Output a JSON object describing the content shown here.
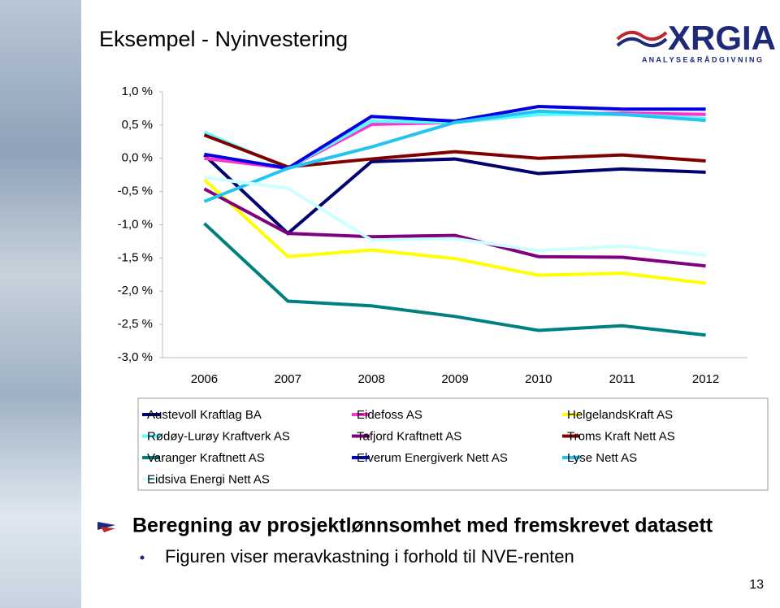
{
  "slide": {
    "title": "Eksempel - Nyinvestering",
    "logo_text": "XRGIA",
    "logo_subtitle": "A N A L Y S E  &  R Å D G I V N I N G",
    "heading": "Beregning av prosjektlønnsomhet med fremskrevet datasett",
    "bullet": "Figuren viser meravkastning i forhold til NVE-renten",
    "page_number": "13"
  },
  "chart_data": {
    "type": "line",
    "categories": [
      "2006",
      "2007",
      "2008",
      "2009",
      "2010",
      "2011",
      "2012"
    ],
    "ylim": [
      -3.0,
      1.0
    ],
    "yticks": [
      {
        "value": 1.0,
        "label": "1,0 %"
      },
      {
        "value": 0.5,
        "label": "0,5 %"
      },
      {
        "value": 0.0,
        "label": "0,0 %"
      },
      {
        "value": -0.5,
        "label": "-0,5 %"
      },
      {
        "value": -1.0,
        "label": "-1,0 %"
      },
      {
        "value": -1.5,
        "label": "-1,5 %"
      },
      {
        "value": -2.0,
        "label": "-2,0 %"
      },
      {
        "value": -2.5,
        "label": "-2,5 %"
      },
      {
        "value": -3.0,
        "label": "-3,0 %"
      }
    ],
    "grid": false,
    "series": [
      {
        "name": "Austevoll Kraftlag BA",
        "color": "#000070",
        "values": [
          0.05,
          -1.13,
          -0.05,
          -0.01,
          -0.23,
          -0.16,
          -0.21
        ]
      },
      {
        "name": "Eidefoss AS",
        "color": "#ff33cc",
        "values": [
          0.0,
          -0.15,
          0.51,
          0.54,
          0.66,
          0.68,
          0.66
        ]
      },
      {
        "name": "HelgelandsKraft AS",
        "color": "#ffff00",
        "values": [
          -0.32,
          -1.48,
          -1.38,
          -1.51,
          -1.76,
          -1.73,
          -1.88
        ]
      },
      {
        "name": "Rødøy-Lurøy Kraftverk AS",
        "color": "#55ffff",
        "values": [
          0.39,
          -0.15,
          0.56,
          0.54,
          0.66,
          0.66,
          0.6
        ]
      },
      {
        "name": "Tafjord Kraftnett AS",
        "color": "#800080",
        "values": [
          -0.46,
          -1.13,
          -1.18,
          -1.16,
          -1.48,
          -1.49,
          -1.62
        ]
      },
      {
        "name": "Troms Kraft Nett AS",
        "color": "#800000",
        "values": [
          0.35,
          -0.13,
          -0.01,
          0.1,
          0.0,
          0.05,
          -0.04
        ]
      },
      {
        "name": "Varanger Kraftnett AS",
        "color": "#008080",
        "values": [
          -0.98,
          -2.15,
          -2.22,
          -2.38,
          -2.59,
          -2.52,
          -2.66
        ]
      },
      {
        "name": "Elverum Energiverk Nett AS",
        "color": "#0000e0",
        "values": [
          0.06,
          -0.15,
          0.63,
          0.56,
          0.78,
          0.74,
          0.74
        ]
      },
      {
        "name": "Lyse Nett AS",
        "color": "#22c4f4",
        "values": [
          -0.65,
          -0.15,
          0.17,
          0.54,
          0.71,
          0.66,
          0.57
        ]
      },
      {
        "name": "Eidsiva Energi Nett AS",
        "color": "#ccffff",
        "values": [
          -0.29,
          -0.45,
          -1.23,
          -1.21,
          -1.39,
          -1.32,
          -1.46
        ]
      }
    ]
  }
}
